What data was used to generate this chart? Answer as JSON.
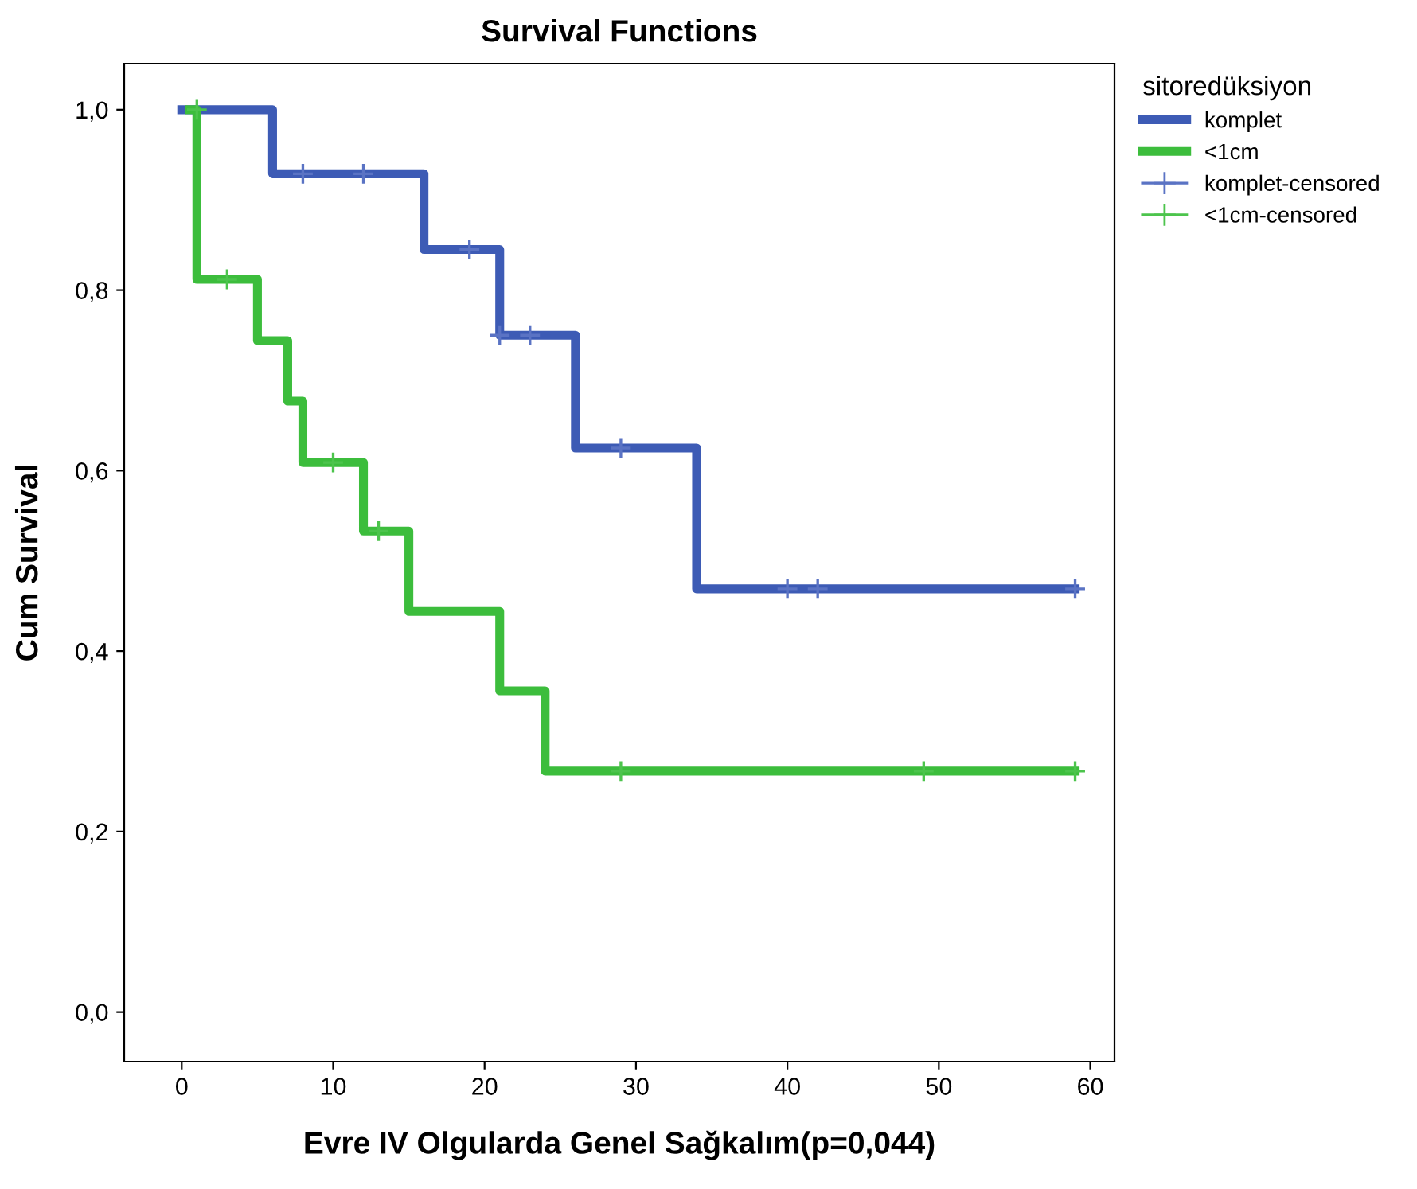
{
  "chart_data": {
    "type": "step",
    "title": "Survival Functions",
    "xlabel": "Evre IV Olgularda Genel Sağkalım(p=0,044)",
    "ylabel": "Cum Survival",
    "legend_title": "sitoredüksiyon",
    "legend": "right",
    "grid": false,
    "xlim": [
      -3.8,
      61.6
    ],
    "ylim": [
      -0.055,
      1.051
    ],
    "xticks": [
      0,
      10,
      20,
      30,
      40,
      50,
      60
    ],
    "yticks": [
      {
        "value": 0,
        "label": "0,0"
      },
      {
        "value": 0.2,
        "label": "0,2"
      },
      {
        "value": 0.4,
        "label": "0,4"
      },
      {
        "value": 0.6,
        "label": "0,6"
      },
      {
        "value": 0.8,
        "label": "0,8"
      },
      {
        "value": 1.0,
        "label": "1,0"
      }
    ],
    "series": [
      {
        "name": "komplet",
        "color": "#3d5bb5",
        "x": [
          0,
          6,
          16,
          21,
          26,
          34,
          59
        ],
        "values": [
          1.0,
          0.929,
          0.845,
          0.75,
          0.625,
          0.469,
          0.469
        ]
      },
      {
        "name": "<1cm",
        "color": "#3cbd3c",
        "x": [
          0.5,
          1,
          5,
          7,
          8,
          12,
          15,
          21,
          24,
          59
        ],
        "values": [
          1.0,
          0.812,
          0.744,
          0.677,
          0.609,
          0.533,
          0.444,
          0.356,
          0.267,
          0.267
        ]
      },
      {
        "name": "komplet-censored",
        "type": "scatter",
        "marker": "cross",
        "color": "#5a73c4",
        "x": [
          8,
          12,
          19,
          21,
          23,
          29,
          40,
          42,
          59
        ],
        "values": [
          0.929,
          0.929,
          0.845,
          0.75,
          0.75,
          0.625,
          0.469,
          0.469,
          0.469
        ]
      },
      {
        "name": "<1cm-censored",
        "type": "scatter",
        "marker": "cross",
        "color": "#4cc44c",
        "x": [
          1,
          3,
          10,
          13,
          29,
          49,
          59
        ],
        "values": [
          1.0,
          0.812,
          0.609,
          0.533,
          0.267,
          0.267,
          0.267
        ]
      }
    ]
  }
}
